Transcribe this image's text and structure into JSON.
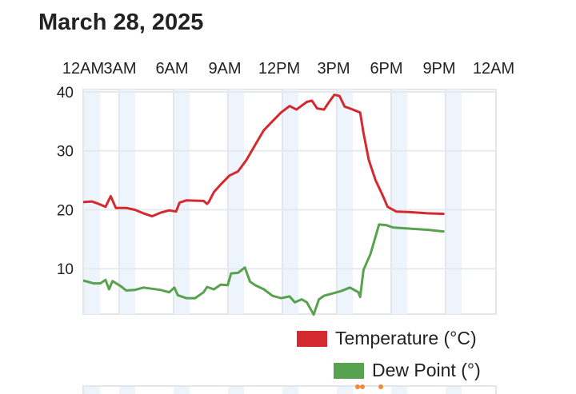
{
  "title": "March 28, 2025",
  "chart_data": {
    "type": "line",
    "title": "March 28, 2025",
    "xlabel": "",
    "ylabel": "",
    "x_unit": "hour of day",
    "xlim": [
      0,
      24
    ],
    "ylim": [
      2.3,
      40.4
    ],
    "x_tick_labels": [
      "12AM",
      "3AM",
      "6AM",
      "9AM",
      "12PM",
      "3PM",
      "6PM",
      "9PM",
      "12AM"
    ],
    "y_ticks": [
      10,
      20,
      30,
      40
    ],
    "grid": true,
    "legend_position": "bottom-right",
    "series": [
      {
        "name": "Temperature (°C)",
        "color": "#d42a2f",
        "x": [
          0,
          0.5,
          0.9,
          1.3,
          1.6,
          1.9,
          2.5,
          3.0,
          3.5,
          4.0,
          4.5,
          5.0,
          5.4,
          5.6,
          6.0,
          7.0,
          7.2,
          7.3,
          7.6,
          8.0,
          8.5,
          9.0,
          9.5,
          10.0,
          10.5,
          11.0,
          11.5,
          12.0,
          12.4,
          13.0,
          13.3,
          13.6,
          14.0,
          14.3,
          14.6,
          14.9,
          15.2,
          15.5,
          16.1,
          16.3,
          16.6,
          17.0,
          17.4,
          17.7,
          18.2,
          19.0,
          20.0,
          21.0
        ],
        "values": [
          21.3,
          21.4,
          21.0,
          20.5,
          22.3,
          20.3,
          20.3,
          20.0,
          19.4,
          18.9,
          19.5,
          19.9,
          19.7,
          21.2,
          21.6,
          21.5,
          21.0,
          21.3,
          23.0,
          24.3,
          25.8,
          26.5,
          28.5,
          31.0,
          33.5,
          35.0,
          36.5,
          37.6,
          37.0,
          38.3,
          38.5,
          37.2,
          37.0,
          38.3,
          39.5,
          39.3,
          37.5,
          37.2,
          36.5,
          33.0,
          28.5,
          25.0,
          22.5,
          20.5,
          19.7,
          19.6,
          19.4,
          19.3
        ]
      },
      {
        "name": "Dew Point (°)",
        "color": "#58a14e",
        "x": [
          0,
          0.6,
          1.0,
          1.3,
          1.5,
          1.7,
          2.2,
          2.5,
          3.0,
          3.5,
          4.0,
          4.5,
          5.0,
          5.3,
          5.5,
          6.0,
          6.5,
          7.0,
          7.2,
          7.6,
          8.0,
          8.4,
          8.6,
          9.0,
          9.4,
          9.7,
          10.0,
          10.5,
          11.0,
          11.5,
          12.0,
          12.3,
          12.7,
          13.0,
          13.4,
          13.7,
          14.0,
          14.5,
          15.0,
          15.5,
          16.0,
          16.1,
          16.3,
          16.7,
          17.2,
          17.6,
          18.0,
          19.0,
          20.0,
          21.0
        ],
        "values": [
          8.0,
          7.5,
          7.5,
          8.1,
          6.5,
          7.9,
          7.0,
          6.3,
          6.4,
          6.8,
          6.6,
          6.4,
          6.0,
          6.8,
          5.5,
          5.0,
          5.0,
          6.0,
          6.9,
          6.5,
          7.3,
          7.2,
          9.2,
          9.3,
          10.2,
          7.8,
          7.2,
          6.5,
          5.4,
          5.0,
          5.3,
          4.3,
          4.8,
          4.3,
          2.2,
          4.8,
          5.4,
          5.8,
          6.2,
          6.8,
          6.0,
          5.2,
          9.8,
          12.5,
          17.5,
          17.4,
          17.0,
          16.8,
          16.6,
          16.3
        ]
      }
    ]
  }
}
